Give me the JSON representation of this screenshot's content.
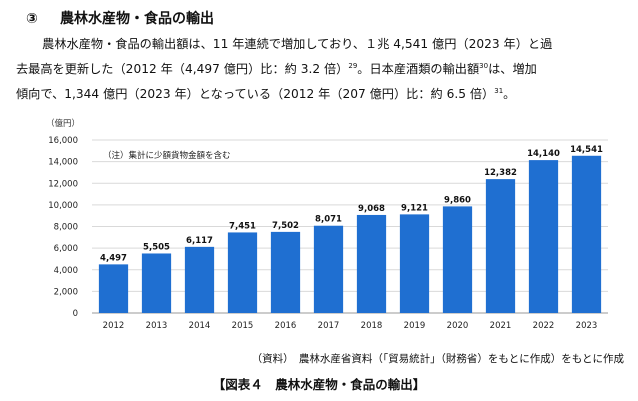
{
  "section": {
    "number": "③",
    "title": "農林水産物・食品の輸出"
  },
  "paragraph": {
    "line1": "　農林水産物・食品の輸出額は、11 年連続で増加しており、１兆 4,541 億円（2023 年）と過",
    "line2_a": "去最高を更新した（2012 年（4,497 億円）比：約 3.2 倍）",
    "line2_fn1": "29",
    "line2_b": "。日本産酒類の輸出額",
    "line2_fn2": "30",
    "line2_c": "は、増加",
    "line3_a": "傾向で、1,344 億円（2023 年）となっている（2012 年（207 億円）比：約 6.5 倍）",
    "line3_fn": "31",
    "line3_b": "。"
  },
  "chart_data": {
    "type": "bar",
    "title": "",
    "unit_label": "（億円）",
    "note": "（注）集計に少額貨物金額を含む",
    "categories": [
      "2012",
      "2013",
      "2014",
      "2015",
      "2016",
      "2017",
      "2018",
      "2019",
      "2020",
      "2021",
      "2022",
      "2023"
    ],
    "values": [
      4497,
      5505,
      6117,
      7451,
      7502,
      8071,
      9068,
      9121,
      9860,
      12382,
      14140,
      14541
    ],
    "value_labels": [
      "4,497",
      "5,505",
      "6,117",
      "7,451",
      "7,502",
      "8,071",
      "9,068",
      "9,121",
      "9,860",
      "12,382",
      "14,140",
      "14,541"
    ],
    "ylim": [
      0,
      16000
    ],
    "yticks": [
      0,
      2000,
      4000,
      6000,
      8000,
      10000,
      12000,
      14000,
      16000
    ],
    "ytick_labels": [
      "0",
      "2,000",
      "4,000",
      "6,000",
      "8,000",
      "10,000",
      "12,000",
      "14,000",
      "16,000"
    ],
    "grid": true,
    "bar_color": "#1f6fd1",
    "grid_color": "#d9d9d9"
  },
  "source": "（資料）　農林水産省資料（「貿易統計」（財務省）をもとに作成）をもとに作成",
  "caption": "【図表４　農林水産物・食品の輸出】"
}
